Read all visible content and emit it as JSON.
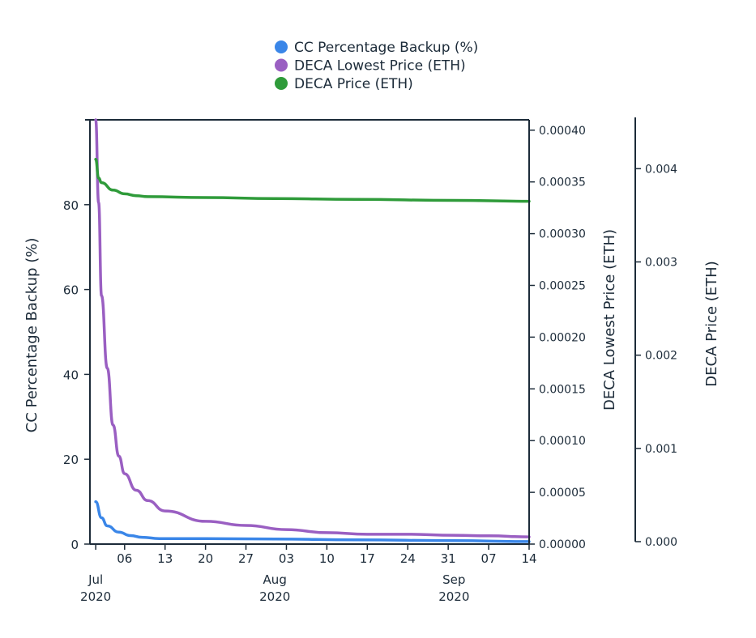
{
  "chart_data": {
    "type": "line",
    "legend": {
      "placement": "top-center",
      "entries": [
        {
          "label": "CC Percentage Backup (%)",
          "color": "#3a86e8"
        },
        {
          "label": "DECA Lowest Price (ETH)",
          "color": "#9a5fc2"
        },
        {
          "label": "DECA Price (ETH)",
          "color": "#2f9b3a"
        }
      ]
    },
    "x_axis": {
      "range": [
        "2020-06-30",
        "2020-09-14"
      ],
      "ticks": [
        {
          "date": "2020-07-01",
          "label": "Jul",
          "year": "2020"
        },
        {
          "date": "2020-07-06",
          "label": "06"
        },
        {
          "date": "2020-07-13",
          "label": "13"
        },
        {
          "date": "2020-07-20",
          "label": "20"
        },
        {
          "date": "2020-07-27",
          "label": "27"
        },
        {
          "date": "2020-08-03",
          "label": "03"
        },
        {
          "date": "2020-08-10",
          "label": "10"
        },
        {
          "date": "2020-08-17",
          "label": "17"
        },
        {
          "date": "2020-08-24",
          "label": "24"
        },
        {
          "date": "2020-08-31",
          "label": "31"
        },
        {
          "date": "2020-09-07",
          "label": "07"
        },
        {
          "date": "2020-09-14",
          "label": "14"
        }
      ],
      "month_labels": [
        {
          "date": "2020-08-01",
          "label": "Aug",
          "year": "2020"
        },
        {
          "date": "2020-09-01",
          "label": "Sep",
          "year": "2020"
        }
      ]
    },
    "y_axes": [
      {
        "id": "left",
        "title": "CC Percentage Backup (%)",
        "range": [
          0,
          100
        ],
        "ticks": [
          0,
          20,
          40,
          60,
          80
        ],
        "tick_labels": [
          "0",
          "20",
          "40",
          "60",
          "80"
        ]
      },
      {
        "id": "right1",
        "title": "DECA Lowest Price (ETH)",
        "range": [
          0,
          0.00041
        ],
        "ticks": [
          0,
          5e-05,
          0.0001,
          0.00015,
          0.0002,
          0.00025,
          0.0003,
          0.00035,
          0.0004
        ],
        "tick_labels": [
          "0.00000",
          "0.00005",
          "0.00010",
          "0.00015",
          "0.00020",
          "0.00025",
          "0.00030",
          "0.00035",
          "0.00040"
        ]
      },
      {
        "id": "right2",
        "title": "DECA Price (ETH)",
        "range": [
          0,
          0.00455
        ],
        "ticks": [
          0,
          0.001,
          0.002,
          0.003,
          0.004
        ],
        "tick_labels": [
          "0.000",
          "0.001",
          "0.002",
          "0.003",
          "0.004"
        ]
      }
    ],
    "series": [
      {
        "name": "CC Percentage Backup (%)",
        "axis": "left",
        "color": "#3a86e8",
        "points": [
          [
            "2020-07-01",
            10
          ],
          [
            "2020-07-02",
            6.2
          ],
          [
            "2020-07-03",
            4.3
          ],
          [
            "2020-07-05",
            2.8
          ],
          [
            "2020-07-07",
            2.0
          ],
          [
            "2020-07-09",
            1.6
          ],
          [
            "2020-07-12",
            1.3
          ],
          [
            "2020-07-20",
            1.3
          ],
          [
            "2020-08-01",
            1.2
          ],
          [
            "2020-08-15",
            1.0
          ],
          [
            "2020-09-01",
            0.8
          ],
          [
            "2020-09-14",
            0.6
          ]
        ]
      },
      {
        "name": "DECA Lowest Price (ETH)",
        "axis": "right1",
        "color": "#9a5fc2",
        "points": [
          [
            "2020-07-01",
            0.00041
          ],
          [
            "2020-07-01T12:00",
            0.00033
          ],
          [
            "2020-07-02",
            0.00024
          ],
          [
            "2020-07-03",
            0.00017
          ],
          [
            "2020-07-04",
            0.000115
          ],
          [
            "2020-07-05",
            8.5e-05
          ],
          [
            "2020-07-06",
            6.8e-05
          ],
          [
            "2020-07-08",
            5.2e-05
          ],
          [
            "2020-07-10",
            4.2e-05
          ],
          [
            "2020-07-13",
            3.2e-05
          ],
          [
            "2020-07-20",
            2.2e-05
          ],
          [
            "2020-07-27",
            1.8e-05
          ],
          [
            "2020-08-03",
            1.4e-05
          ],
          [
            "2020-08-10",
            1.1e-05
          ],
          [
            "2020-08-17",
            9.5e-06
          ],
          [
            "2020-08-24",
            9.5e-06
          ],
          [
            "2020-09-01",
            8.5e-06
          ],
          [
            "2020-09-07",
            8e-06
          ],
          [
            "2020-09-14",
            7e-06
          ]
        ]
      },
      {
        "name": "DECA Price (ETH)",
        "axis": "right2",
        "color": "#2f9b3a",
        "points": [
          [
            "2020-07-01",
            0.0041
          ],
          [
            "2020-07-01T12:00",
            0.0039
          ],
          [
            "2020-07-02",
            0.00385
          ],
          [
            "2020-07-04",
            0.00377
          ],
          [
            "2020-07-06",
            0.00373
          ],
          [
            "2020-07-08",
            0.00371
          ],
          [
            "2020-07-10",
            0.0037
          ],
          [
            "2020-07-20",
            0.00369
          ],
          [
            "2020-08-01",
            0.00368
          ],
          [
            "2020-08-15",
            0.00367
          ],
          [
            "2020-09-01",
            0.00366
          ],
          [
            "2020-09-14",
            0.00365
          ]
        ]
      }
    ]
  }
}
